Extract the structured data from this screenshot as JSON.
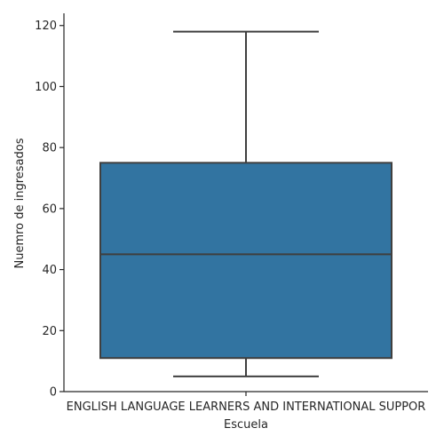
{
  "chart_data": {
    "type": "box",
    "categories": [
      "ENGLISH LANGUAGE LEARNERS AND INTERNATIONAL SUPPOR"
    ],
    "boxes": [
      {
        "category": "ENGLISH LANGUAGE LEARNERS AND INTERNATIONAL SUPPOR",
        "whisker_low": 5,
        "q1": 11,
        "median": 45,
        "q3": 75,
        "whisker_high": 118
      }
    ],
    "xlabel": "Escuela",
    "ylabel": "Nuemro de ingresados",
    "ylim": [
      0,
      124
    ],
    "yticks": [
      0,
      20,
      40,
      60,
      80,
      100,
      120
    ],
    "box_color": "#3274a1",
    "line_color": "#3f3f3f",
    "axis_color": "#262626",
    "grid": false,
    "legend": "none"
  }
}
